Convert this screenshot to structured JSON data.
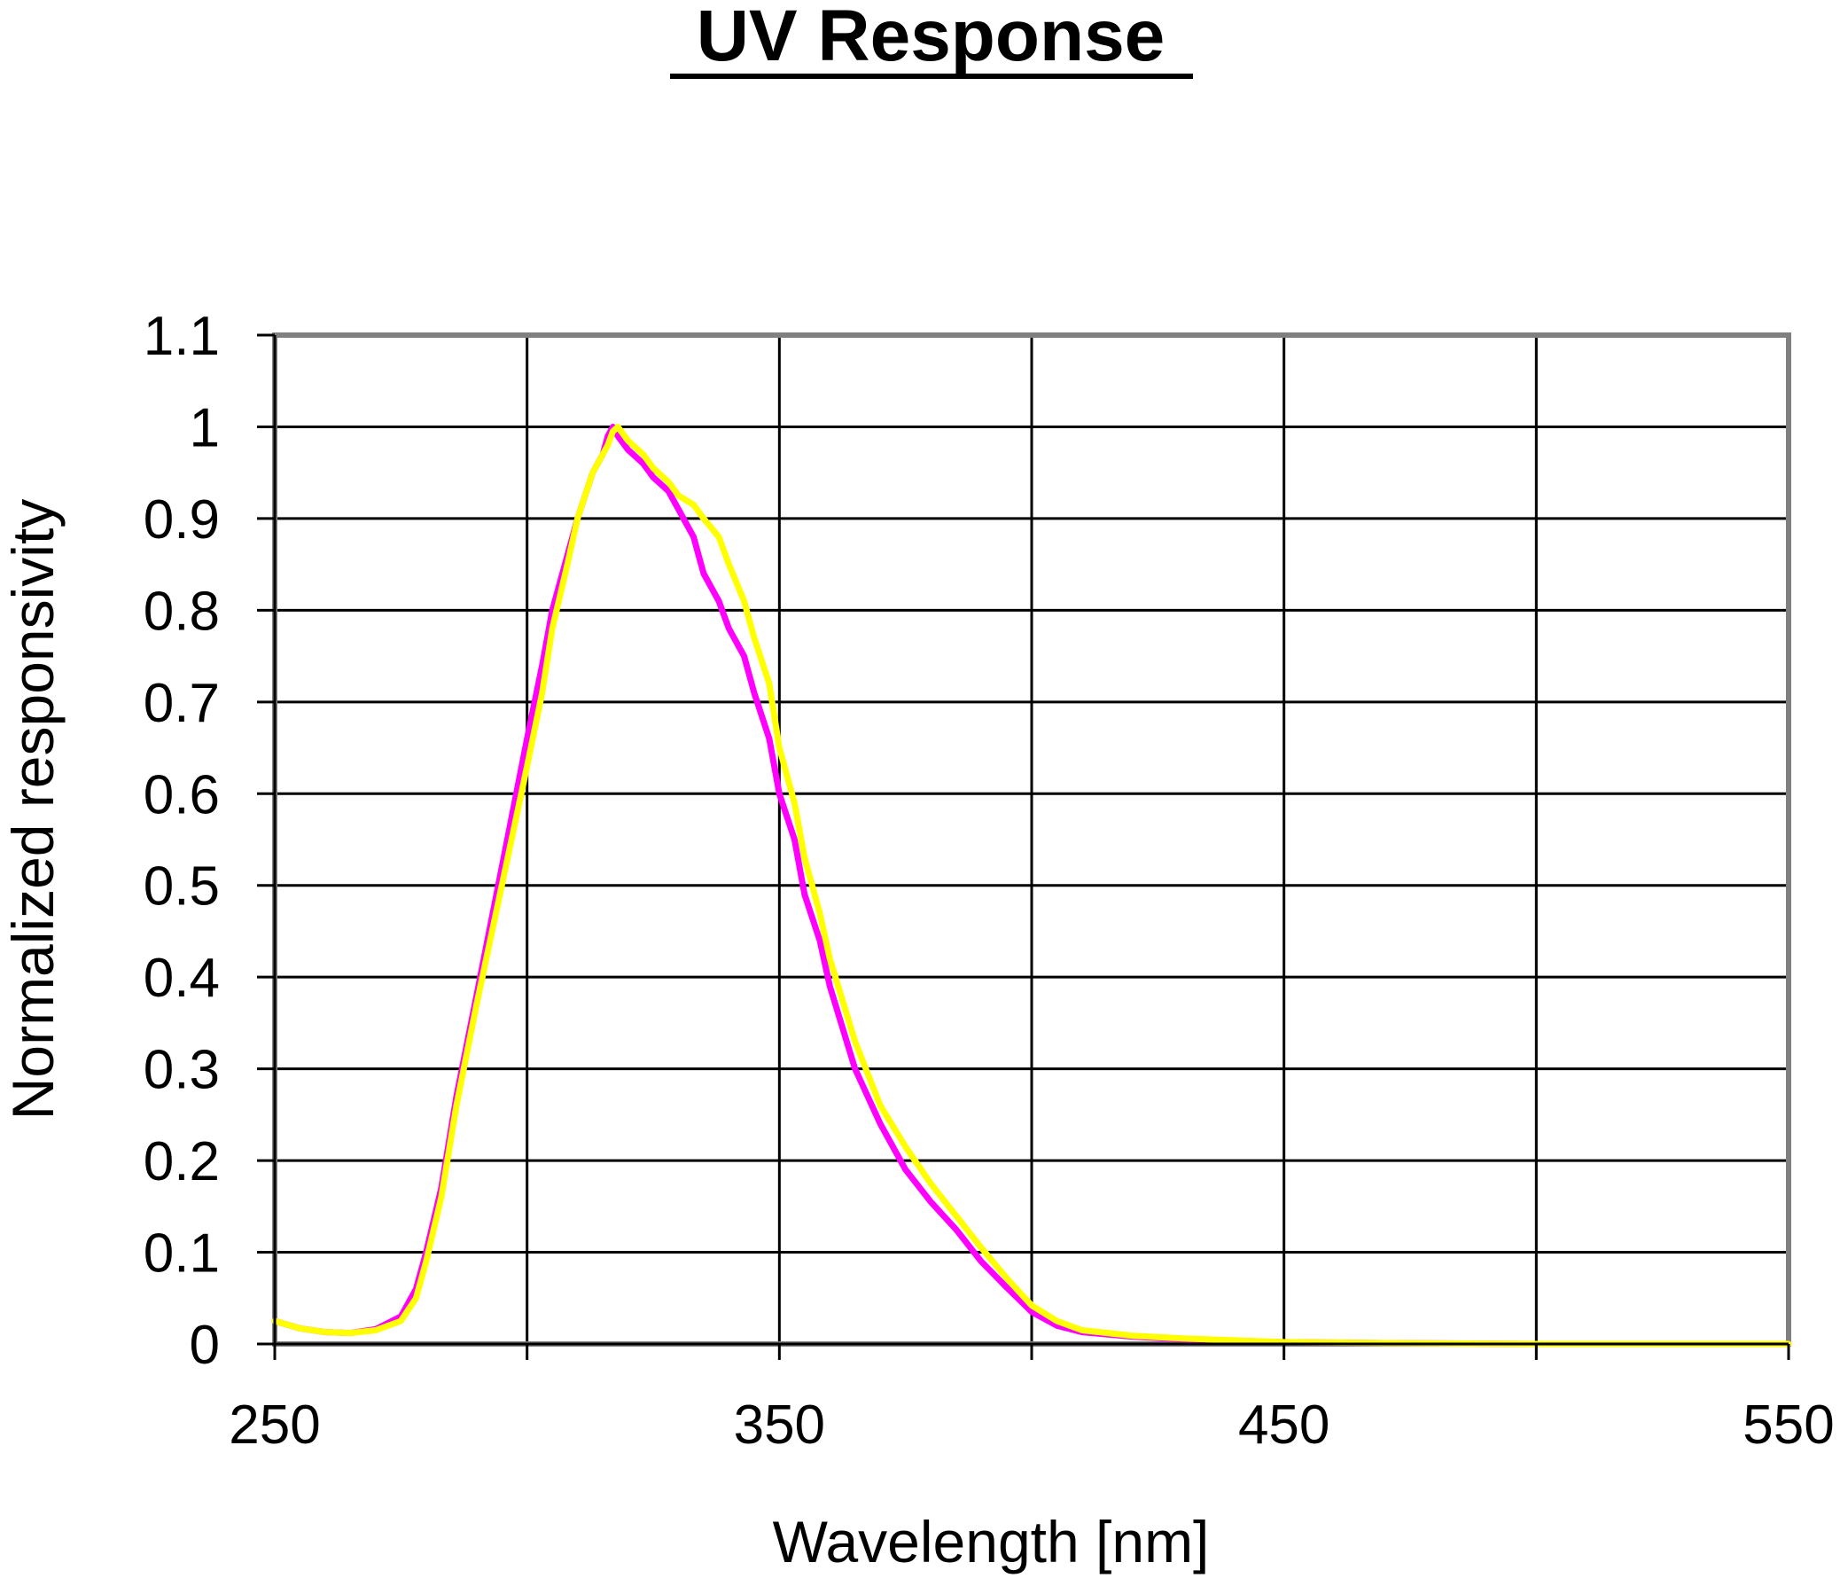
{
  "chart_data": {
    "type": "line",
    "title": "UV Response",
    "xlabel": "Wavelength [nm]",
    "ylabel": "Normalized responsivity",
    "xlim": [
      250,
      550
    ],
    "ylim": [
      0,
      1.1
    ],
    "x_ticks": [
      250,
      350,
      450,
      550
    ],
    "x_tick_labels": [
      "250",
      "350",
      "450",
      "550"
    ],
    "x_gridlines": [
      250,
      300,
      350,
      400,
      450,
      500,
      550
    ],
    "y_ticks": [
      0,
      0.1,
      0.2,
      0.3,
      0.4,
      0.5,
      0.6,
      0.7,
      0.8,
      0.9,
      1,
      1.1
    ],
    "y_tick_labels": [
      "0",
      "0.1",
      "0.2",
      "0.3",
      "0.4",
      "0.5",
      "0.6",
      "0.7",
      "0.8",
      "0.9",
      "1",
      "1.1"
    ],
    "grid": true,
    "legend": "none",
    "series": [
      {
        "color": "#ff00ff",
        "x": [
          250,
          255,
          260,
          265,
          270,
          275,
          278,
          280,
          283,
          286,
          290,
          295,
          300,
          303,
          305,
          308,
          310,
          313,
          315,
          316,
          317,
          318,
          320,
          323,
          325,
          328,
          330,
          333,
          335,
          338,
          340,
          343,
          345,
          348,
          350,
          353,
          355,
          358,
          360,
          365,
          370,
          375,
          380,
          385,
          390,
          395,
          400,
          405,
          410,
          420,
          430,
          440,
          450,
          470,
          500,
          530,
          550
        ],
        "y": [
          0.025,
          0.017,
          0.013,
          0.012,
          0.016,
          0.03,
          0.06,
          0.1,
          0.17,
          0.27,
          0.38,
          0.52,
          0.66,
          0.74,
          0.8,
          0.86,
          0.9,
          0.95,
          0.97,
          0.99,
          1.0,
          0.99,
          0.975,
          0.96,
          0.945,
          0.93,
          0.91,
          0.88,
          0.84,
          0.81,
          0.78,
          0.75,
          0.71,
          0.66,
          0.6,
          0.55,
          0.49,
          0.44,
          0.39,
          0.3,
          0.24,
          0.19,
          0.155,
          0.125,
          0.09,
          0.062,
          0.035,
          0.02,
          0.013,
          0.008,
          0.005,
          0.003,
          0.002,
          0.001,
          0.0,
          0.0,
          0.0
        ]
      },
      {
        "color": "#ffff00",
        "x": [
          250,
          255,
          260,
          265,
          270,
          275,
          278,
          280,
          283,
          286,
          290,
          295,
          300,
          303,
          305,
          308,
          310,
          313,
          315,
          316,
          317,
          318,
          320,
          323,
          325,
          328,
          330,
          333,
          335,
          338,
          340,
          343,
          345,
          348,
          350,
          353,
          355,
          358,
          360,
          365,
          370,
          375,
          380,
          385,
          390,
          395,
          400,
          405,
          410,
          420,
          430,
          440,
          450,
          470,
          500,
          530,
          550
        ],
        "y": [
          0.025,
          0.017,
          0.013,
          0.012,
          0.015,
          0.025,
          0.05,
          0.09,
          0.16,
          0.26,
          0.37,
          0.5,
          0.63,
          0.71,
          0.78,
          0.85,
          0.9,
          0.95,
          0.97,
          0.98,
          0.995,
          1.0,
          0.985,
          0.97,
          0.955,
          0.94,
          0.925,
          0.915,
          0.9,
          0.88,
          0.85,
          0.81,
          0.77,
          0.72,
          0.65,
          0.59,
          0.53,
          0.47,
          0.42,
          0.33,
          0.26,
          0.215,
          0.175,
          0.14,
          0.105,
          0.072,
          0.042,
          0.025,
          0.015,
          0.009,
          0.006,
          0.004,
          0.002,
          0.001,
          0.0,
          0.0,
          0.0
        ]
      }
    ]
  }
}
